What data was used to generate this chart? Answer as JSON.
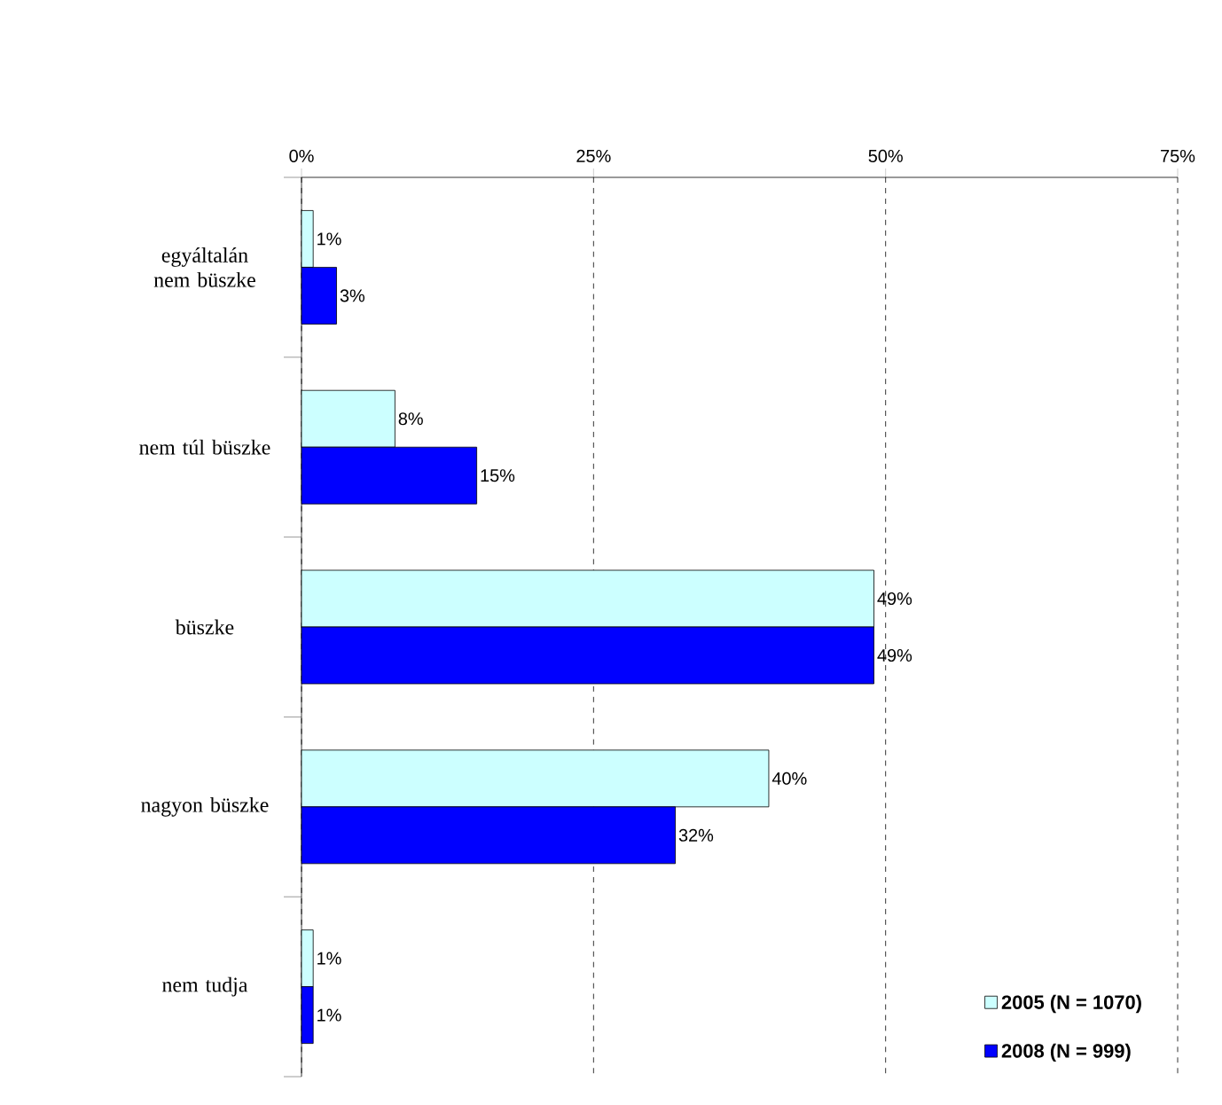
{
  "chart_data": {
    "type": "bar",
    "orientation": "horizontal",
    "categories": [
      "egyáltalán nem büszke",
      "nem túl büszke",
      "büszke",
      "nagyon büszke",
      "nem tudja"
    ],
    "series": [
      {
        "name": "2005 (N = 1070)",
        "color": "#ccffff",
        "values": [
          1,
          8,
          49,
          40,
          1
        ],
        "value_labels": [
          "1%",
          "8%",
          "49%",
          "40%",
          "1%"
        ]
      },
      {
        "name": "2008 (N = 999)",
        "color": "#0000ff",
        "values": [
          3,
          15,
          49,
          32,
          1
        ],
        "value_labels": [
          "3%",
          "15%",
          "49%",
          "32%",
          "1%"
        ]
      }
    ],
    "xlim": [
      0,
      75
    ],
    "xticks": [
      {
        "value": 0,
        "label": "0%"
      },
      {
        "value": 25,
        "label": "25%"
      },
      {
        "value": 50,
        "label": "50%"
      },
      {
        "value": 75,
        "label": "75%"
      }
    ],
    "grid": "x",
    "legend": "bottom right"
  }
}
